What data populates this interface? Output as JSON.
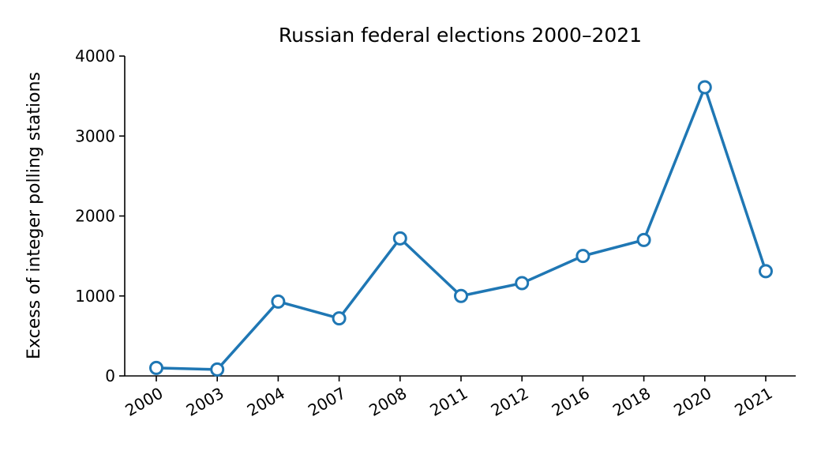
{
  "chart_data": {
    "type": "line",
    "title": "Russian federal elections 2000–2021",
    "xlabel": "",
    "ylabel": "Excess of integer polling stations",
    "categories": [
      "2000",
      "2003",
      "2004",
      "2007",
      "2008",
      "2011",
      "2012",
      "2016",
      "2018",
      "2020",
      "2021"
    ],
    "series": [
      {
        "values": [
          100,
          80,
          930,
          720,
          1720,
          1000,
          1160,
          1500,
          1700,
          3610,
          1310
        ]
      }
    ],
    "ylim": [
      0,
      4000
    ],
    "yticks": [
      "0",
      "1000",
      "2000",
      "3000",
      "4000"
    ],
    "grid": false,
    "color": "#1f77b4"
  }
}
